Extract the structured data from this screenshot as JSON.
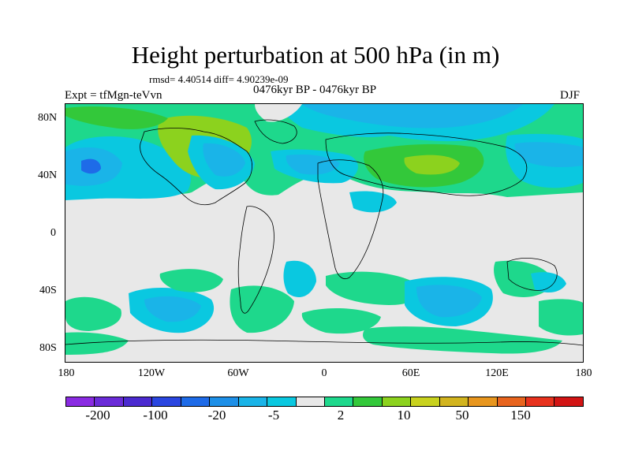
{
  "title": "Height perturbation at 500 hPa (in m)",
  "stats": "rmsd= 4.40514 diff= 4.90239e-09",
  "period": "0476kyr BP - 0476kyr BP",
  "experiment": "Expt = tfMgn-teVvn",
  "season": "DJF",
  "lat_labels": [
    "80N",
    "40N",
    "0",
    "40S",
    "80S"
  ],
  "lon_labels": [
    "180",
    "120W",
    "60W",
    "0",
    "60E",
    "120E",
    "180"
  ],
  "colorbar": {
    "colors": [
      "#8a2be2",
      "#6a2bd8",
      "#4b2ad0",
      "#2a46e0",
      "#1e6be8",
      "#1e90e8",
      "#1ab4e8",
      "#0ac8e0",
      "#e8e8e8",
      "#1ed88c",
      "#33c83a",
      "#8cd21e",
      "#c8d21e",
      "#d2b41e",
      "#e8961e",
      "#e8641e",
      "#e8321e",
      "#d21414"
    ],
    "labels": [
      "-200",
      "-100",
      "-20",
      "-5",
      "2",
      "10",
      "50",
      "150"
    ]
  },
  "chart_data": {
    "type": "map",
    "projection": "cylindrical equidistant",
    "field": "500 hPa height perturbation",
    "units": "m",
    "lon_range": [
      -180,
      180
    ],
    "lat_range": [
      -90,
      90
    ],
    "features": [
      {
        "region": "North Pacific",
        "sign": "negative",
        "level": "-20"
      },
      {
        "region": "North Atlantic / Western Europe",
        "sign": "negative",
        "level": "-20"
      },
      {
        "region": "Arctic / northern Eurasia",
        "sign": "negative",
        "level": "-20"
      },
      {
        "region": "Alaska / western Canada",
        "sign": "positive",
        "level": "10"
      },
      {
        "region": "Central Asia",
        "sign": "positive",
        "level": "10"
      },
      {
        "region": "Southern Ocean (South Pacific, South Indian)",
        "sign": "negative",
        "level": "-20"
      },
      {
        "region": "South Atlantic",
        "sign": "positive",
        "level": "10"
      }
    ]
  }
}
